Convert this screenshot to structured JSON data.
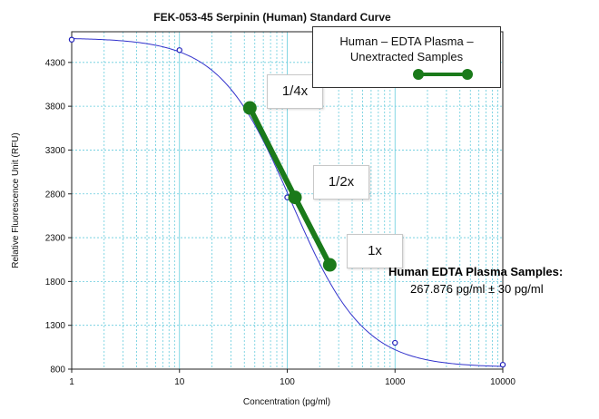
{
  "chart_data": {
    "type": "scatter",
    "title": "FEK-053-45 Serpinin (Human) Standard Curve",
    "xlabel": "Concentration (pg/ml)",
    "ylabel": "Relative Fluorescence Unit (RFU)",
    "x_scale": "log",
    "xlim": [
      1,
      10000
    ],
    "ylim": [
      800,
      4650
    ],
    "x_ticks": [
      1,
      10,
      100,
      1000,
      10000
    ],
    "x_tick_labels": [
      "1",
      "10",
      "100",
      "1000",
      "10000"
    ],
    "y_ticks": [
      800,
      1300,
      1800,
      2300,
      2800,
      3300,
      3800,
      4300
    ],
    "y_tick_labels": [
      "800",
      "1300",
      "1800",
      "2300",
      "2800",
      "3300",
      "3800",
      "4300"
    ],
    "grid": true,
    "series": [
      {
        "role": "standards",
        "x": [
          1,
          10,
          100,
          1000,
          10000
        ],
        "y": [
          4560,
          4440,
          2760,
          1100,
          850
        ]
      },
      {
        "role": "fitted-curve",
        "model": "4PL",
        "params": {
          "a": 4580,
          "d": 820,
          "c": 110,
          "b": 1.3
        }
      },
      {
        "name": "Human – EDTA Plasma – Unextracted Samples",
        "color": "#1a7a1a",
        "x": [
          45,
          118,
          248
        ],
        "y": [
          3780,
          2760,
          1990
        ],
        "point_labels": [
          "1/4x",
          "1/2x",
          "1x"
        ]
      }
    ],
    "legend": {
      "line1": "Human – EDTA Plasma –",
      "line2": "Unextracted Samples",
      "position": "top-right"
    },
    "annotations": {
      "title": "Human EDTA Plasma Samples:",
      "value": "267.876 pg/ml ± 30 pg/ml"
    }
  },
  "colors": {
    "curve": "#3333cc",
    "standards": "#2222bb",
    "sample": "#1a7a1a",
    "grid": "#66ccdd"
  }
}
